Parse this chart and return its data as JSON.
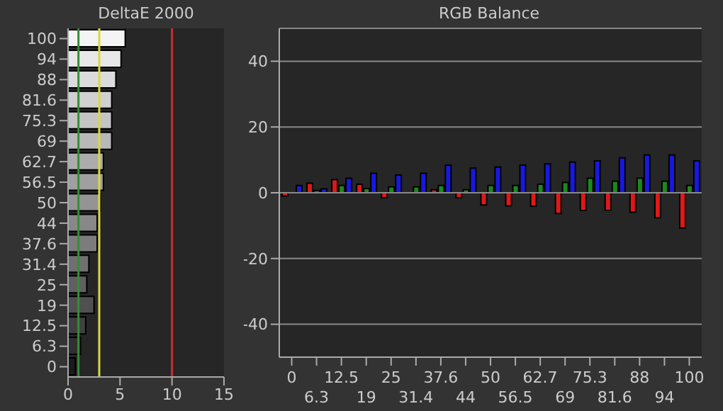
{
  "chart_data": [
    {
      "type": "bar",
      "title": "DeltaE 2000",
      "orientation": "horizontal",
      "categories": [
        "100",
        "94",
        "88",
        "81.6",
        "75.3",
        "69",
        "62.7",
        "56.5",
        "50",
        "44",
        "37.6",
        "31.4",
        "25",
        "19",
        "12.5",
        "6.3",
        "0"
      ],
      "values": [
        5.5,
        5.1,
        4.6,
        4.2,
        4.2,
        4.2,
        3.4,
        3.4,
        3.1,
        2.8,
        2.8,
        2.0,
        1.8,
        2.5,
        1.7,
        1.2,
        0.7
      ],
      "colors": [
        "#f4f4f4",
        "#e8e8e8",
        "#dcdcdc",
        "#d0d0d0",
        "#c4c4c4",
        "#b8b8b8",
        "#acacac",
        "#a0a0a0",
        "#949494",
        "#888888",
        "#7c7c7c",
        "#707070",
        "#606060",
        "#505050",
        "#404040",
        "#303030",
        "#1a1a1a"
      ],
      "xlim": [
        0,
        15
      ],
      "xticks": [
        0,
        5,
        10,
        15
      ],
      "ref_lines": [
        {
          "axis": "x",
          "value": 1,
          "color": "#3a8a3a"
        },
        {
          "axis": "x",
          "value": 3,
          "color": "#d8d840"
        },
        {
          "axis": "x",
          "value": 10,
          "color": "#c83030"
        }
      ]
    },
    {
      "type": "bar",
      "title": "RGB Balance",
      "categories": [
        "0",
        "6.3",
        "12.5",
        "19",
        "25",
        "31.4",
        "37.6",
        "44",
        "50",
        "56.5",
        "62.7",
        "69",
        "75.3",
        "81.6",
        "88",
        "94",
        "100"
      ],
      "series": [
        {
          "color": "#e01818",
          "values": [
            -1,
            2.9,
            4.0,
            2.6,
            -1.5,
            null,
            0.9,
            -1.5,
            -3.7,
            -4.0,
            -4.1,
            -6.3,
            -5.4,
            -5.4,
            -5.9,
            -7.6,
            -10.7
          ]
        },
        {
          "color": "#1a8a1a",
          "values": [
            null,
            0.7,
            2.2,
            1.3,
            1.8,
            1.8,
            2.2,
            0.9,
            2.2,
            2.2,
            2.6,
            3.1,
            4.4,
            3.5,
            4.4,
            3.5,
            2.2
          ]
        },
        {
          "color": "#1818e0",
          "values": [
            2.2,
            1.2,
            4.4,
            5.9,
            5.4,
            5.9,
            8.4,
            7.5,
            7.8,
            8.4,
            8.8,
            9.3,
            9.7,
            10.6,
            11.5,
            11.5,
            9.7
          ]
        }
      ],
      "ylim": [
        -50,
        50
      ],
      "yticks": [
        -40,
        -20,
        0,
        20,
        40
      ],
      "grid": "y"
    }
  ]
}
